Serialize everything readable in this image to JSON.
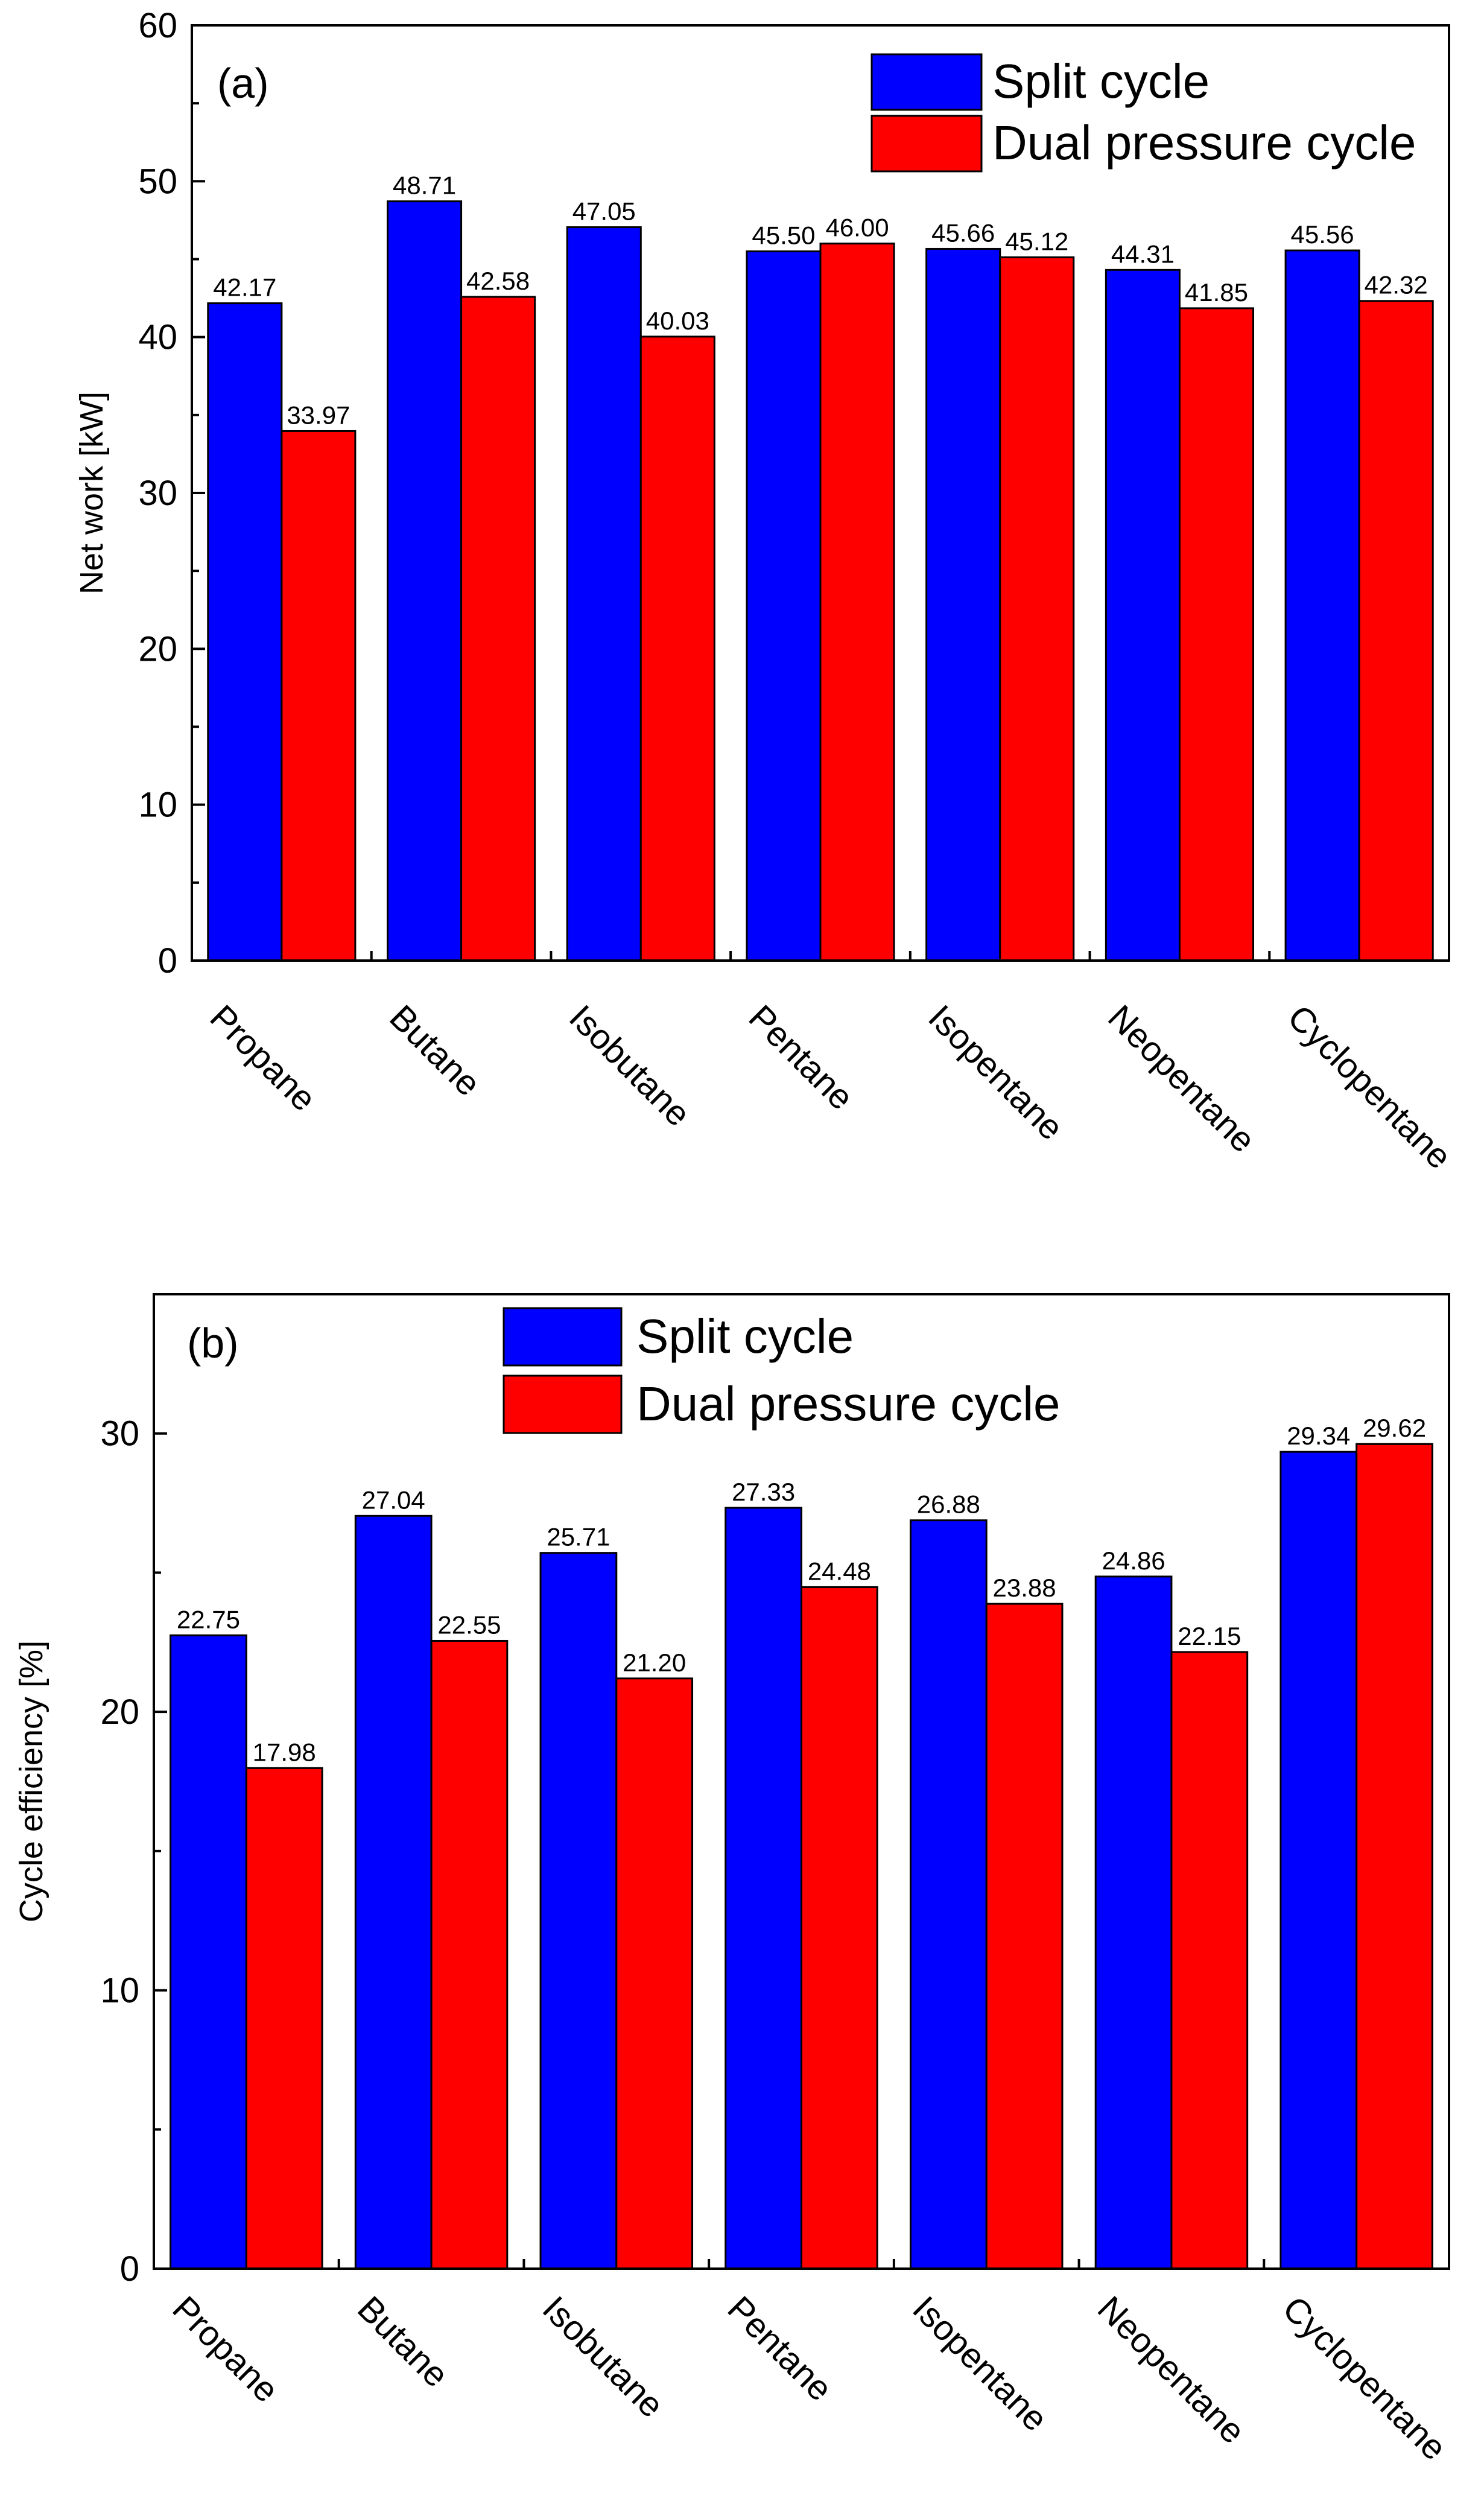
{
  "chart_data": [
    {
      "type": "bar",
      "panel_label": "(a)",
      "categories": [
        "Propane",
        "Butane",
        "Isobutane",
        "Pentane",
        "Isopentane",
        "Neopentane",
        "Cyclopentane"
      ],
      "series": [
        {
          "name": "Split cycle",
          "color": "#0000ff",
          "values": [
            42.17,
            48.71,
            47.05,
            45.5,
            45.66,
            44.31,
            45.56
          ],
          "labels": [
            "42.17",
            "48.71",
            "47.05",
            "45.50",
            "45.66",
            "44.31",
            "45.56"
          ]
        },
        {
          "name": "Dual pressure cycle",
          "color": "#ff0000",
          "values": [
            33.97,
            42.58,
            40.03,
            46.0,
            45.12,
            41.85,
            42.32
          ],
          "labels": [
            "33.97",
            "42.58",
            "40.03",
            "46.00",
            "45.12",
            "41.85",
            "42.32"
          ]
        }
      ],
      "xlabel": "",
      "ylabel": "Net work [kW]",
      "ylim": [
        0,
        60
      ],
      "yticks": [
        "0",
        "10",
        "20",
        "30",
        "40",
        "50",
        "60"
      ],
      "legend_position": "top-right",
      "grid": false
    },
    {
      "type": "bar",
      "panel_label": "(b)",
      "categories": [
        "Propane",
        "Butane",
        "Isobutane",
        "Pentane",
        "Isopentane",
        "Neopentane",
        "Cyclopentane"
      ],
      "series": [
        {
          "name": "Split cycle",
          "color": "#0000ff",
          "values": [
            22.75,
            27.04,
            25.71,
            27.33,
            26.88,
            24.86,
            29.34
          ],
          "labels": [
            "22.75",
            "27.04",
            "25.71",
            "27.33",
            "26.88",
            "24.86",
            "29.34"
          ]
        },
        {
          "name": "Dual pressure cycle",
          "color": "#ff0000",
          "values": [
            17.98,
            22.55,
            21.2,
            24.48,
            23.88,
            22.15,
            29.62
          ],
          "labels": [
            "17.98",
            "22.55",
            "21.20",
            "24.48",
            "23.88",
            "22.15",
            "29.62"
          ]
        }
      ],
      "xlabel": "",
      "ylabel": "Cycle efficiency [%]",
      "ylim": [
        0,
        35
      ],
      "yticks": [
        "0",
        "10",
        "20",
        "30"
      ],
      "legend_position": "top-center",
      "grid": false
    }
  ]
}
